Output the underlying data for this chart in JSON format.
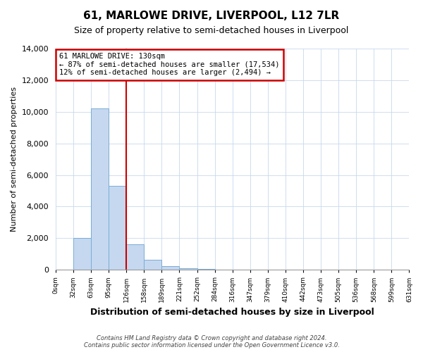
{
  "title": "61, MARLOWE DRIVE, LIVERPOOL, L12 7LR",
  "subtitle": "Size of property relative to semi-detached houses in Liverpool",
  "xlabel": "Distribution of semi-detached houses by size in Liverpool",
  "ylabel": "Number of semi-detached properties",
  "bin_labels": [
    "0sqm",
    "32sqm",
    "63sqm",
    "95sqm",
    "126sqm",
    "158sqm",
    "189sqm",
    "221sqm",
    "252sqm",
    "284sqm",
    "316sqm",
    "347sqm",
    "379sqm",
    "410sqm",
    "442sqm",
    "473sqm",
    "505sqm",
    "536sqm",
    "568sqm",
    "599sqm",
    "631sqm"
  ],
  "bar_values": [
    0,
    2000,
    10200,
    5300,
    1600,
    650,
    230,
    110,
    50,
    20,
    0,
    0,
    0,
    0,
    0,
    0,
    0,
    0,
    0,
    0
  ],
  "bar_color": "#c5d8f0",
  "bar_edge_color": "#7aadd4",
  "property_line_x": 4,
  "property_line_color": "#cc0000",
  "annotation_title": "61 MARLOWE DRIVE: 130sqm",
  "annotation_line1": "← 87% of semi-detached houses are smaller (17,534)",
  "annotation_line2": "12% of semi-detached houses are larger (2,494) →",
  "annotation_box_color": "#cc0000",
  "ylim": [
    0,
    14000
  ],
  "yticks": [
    0,
    2000,
    4000,
    6000,
    8000,
    10000,
    12000,
    14000
  ],
  "footer1": "Contains HM Land Registry data © Crown copyright and database right 2024.",
  "footer2": "Contains public sector information licensed under the Open Government Licence v3.0."
}
